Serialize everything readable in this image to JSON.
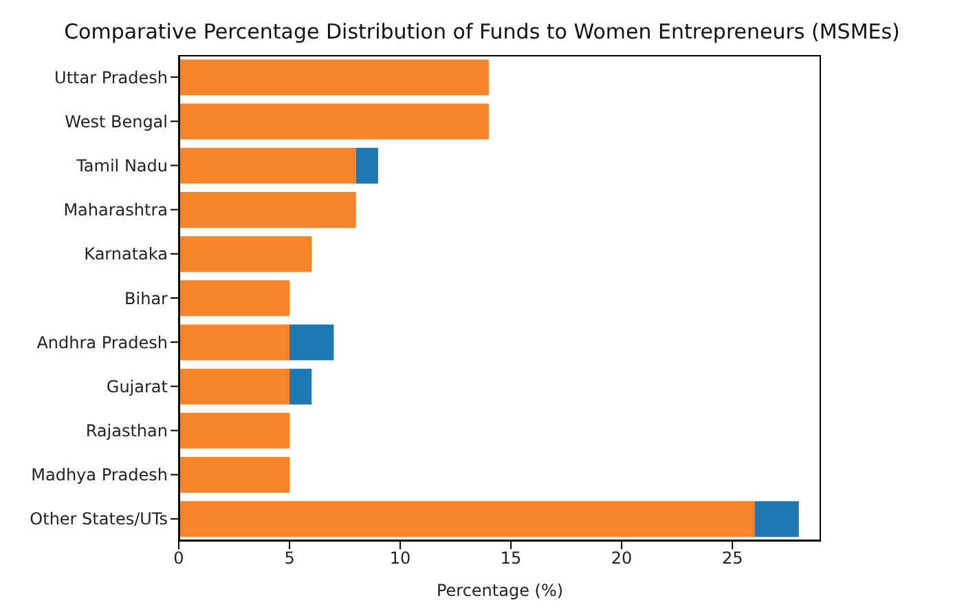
{
  "chart_data": {
    "type": "bar",
    "orientation": "horizontal",
    "stacked": true,
    "title": "Comparative Percentage Distribution of Funds to Women Entrepreneurs (MSMEs)",
    "xlabel": "Percentage (%)",
    "categories": [
      "Uttar Pradesh",
      "West Bengal",
      "Tamil Nadu",
      "Maharashtra",
      "Karnataka",
      "Bihar",
      "Andhra Pradesh",
      "Gujarat",
      "Rajasthan",
      "Madhya Pradesh",
      "Other States/UTs"
    ],
    "series": [
      {
        "color": "#f5842b",
        "values": [
          14,
          14,
          8,
          8,
          6,
          5,
          5,
          5,
          5,
          5,
          26
        ]
      },
      {
        "color": "#1f77b4",
        "values": [
          null,
          null,
          1,
          null,
          null,
          null,
          2,
          1,
          null,
          null,
          2
        ]
      }
    ],
    "xlim": [
      0,
      29
    ],
    "xticks": [
      0,
      5,
      10,
      15,
      20,
      25
    ],
    "grid": false,
    "legend": false
  }
}
